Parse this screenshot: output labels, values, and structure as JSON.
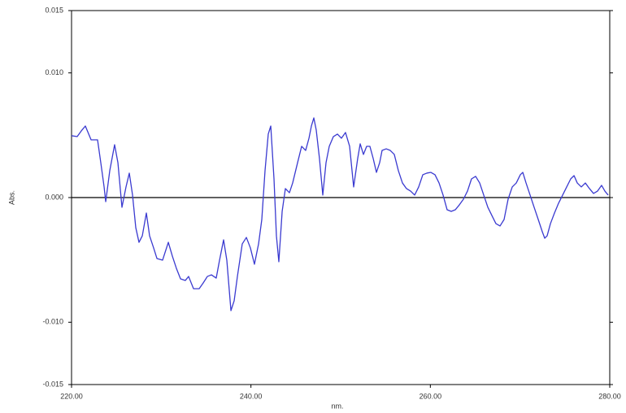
{
  "chart_data": {
    "type": "line",
    "x_label": "nm.",
    "y_label": "Abs.",
    "x": [
      220.0,
      220.63,
      221.09,
      221.54,
      222.18,
      222.9,
      223.26,
      223.63,
      223.81,
      224.26,
      224.8,
      225.17,
      225.62,
      226.07,
      226.44,
      226.8,
      227.16,
      227.52,
      227.89,
      228.34,
      228.7,
      229.15,
      229.52,
      230.15,
      230.79,
      231.24,
      231.69,
      232.15,
      232.69,
      233.05,
      233.6,
      234.23,
      234.68,
      235.14,
      235.59,
      236.13,
      236.5,
      236.95,
      237.31,
      237.77,
      238.13,
      238.49,
      239.03,
      239.49,
      239.94,
      240.39,
      240.85,
      241.21,
      241.57,
      241.93,
      242.21,
      242.57,
      242.84,
      243.11,
      243.48,
      243.84,
      244.29,
      244.65,
      245.2,
      245.65,
      246.1,
      246.47,
      246.74,
      247.01,
      247.28,
      247.64,
      248.01,
      248.37,
      248.73,
      249.19,
      249.64,
      250.09,
      250.54,
      251.0,
      251.45,
      251.9,
      252.18,
      252.54,
      252.9,
      253.26,
      253.63,
      253.99,
      254.35,
      254.62,
      255.08,
      255.53,
      255.98,
      256.44,
      256.89,
      257.34,
      257.8,
      258.25,
      258.7,
      259.16,
      259.61,
      260.06,
      260.52,
      260.97,
      261.42,
      261.87,
      262.33,
      262.78,
      263.23,
      263.69,
      264.14,
      264.59,
      265.05,
      265.5,
      265.95,
      266.41,
      266.86,
      267.31,
      267.77,
      268.22,
      268.67,
      269.13,
      269.58,
      270.03,
      270.31,
      270.67,
      271.12,
      271.57,
      272.03,
      272.48,
      272.75,
      273.02,
      273.39,
      273.84,
      274.29,
      274.75,
      275.2,
      275.65,
      276.02,
      276.38,
      276.83,
      277.28,
      277.74,
      278.19,
      278.64,
      279.09,
      279.46,
      279.82
    ],
    "series": [
      {
        "color": "#3a3ad0",
        "values": [
          0.00496,
          0.00489,
          0.00535,
          0.00574,
          0.00463,
          0.00463,
          0.0028,
          0.00085,
          -0.00033,
          0.00215,
          0.00424,
          0.0028,
          -0.00078,
          0.00085,
          0.00196,
          0.0002,
          -0.00241,
          -0.00359,
          -0.00307,
          -0.00124,
          -0.00307,
          -0.00404,
          -0.00489,
          -0.00502,
          -0.00359,
          -0.0047,
          -0.00568,
          -0.00652,
          -0.00665,
          -0.00633,
          -0.00731,
          -0.00731,
          -0.00685,
          -0.00633,
          -0.0062,
          -0.00646,
          -0.00502,
          -0.00339,
          -0.00502,
          -0.00907,
          -0.00828,
          -0.00633,
          -0.00372,
          -0.0032,
          -0.00404,
          -0.00535,
          -0.00372,
          -0.00176,
          0.00215,
          0.00509,
          0.00574,
          0.0015,
          -0.00307,
          -0.00515,
          -0.00111,
          0.00072,
          0.00039,
          0.00117,
          0.0028,
          0.00411,
          0.00378,
          0.00476,
          0.00574,
          0.00639,
          0.00541,
          0.00313,
          0.0002,
          0.0028,
          0.00411,
          0.00489,
          0.00509,
          0.00476,
          0.00522,
          0.00411,
          0.00085,
          0.00313,
          0.00431,
          0.00346,
          0.00411,
          0.00411,
          0.00313,
          0.00202,
          0.0028,
          0.00378,
          0.00391,
          0.00378,
          0.00346,
          0.00215,
          0.00117,
          0.00072,
          0.00052,
          0.0002,
          0.00085,
          0.00183,
          0.00196,
          0.00202,
          0.00183,
          0.00117,
          0.0002,
          -0.00098,
          -0.00111,
          -0.00098,
          -0.00059,
          -0.00013,
          0.00052,
          0.0015,
          0.0017,
          0.00117,
          0.0002,
          -0.00078,
          -0.00144,
          -0.00209,
          -0.00228,
          -0.00176,
          -0.00013,
          0.00085,
          0.00117,
          0.00183,
          0.00202,
          0.00117,
          0.0002,
          -0.00078,
          -0.00176,
          -0.00274,
          -0.00326,
          -0.00307,
          -0.00209,
          -0.00124,
          -0.00046,
          0.0002,
          0.00085,
          0.0015,
          0.00176,
          0.00117,
          0.00085,
          0.00117,
          0.00072,
          0.00033,
          0.00052,
          0.00098,
          0.00052,
          0.0002
        ]
      }
    ],
    "xlim": [
      220,
      280
    ],
    "xticks": [
      {
        "value": 220,
        "label": "220.00"
      },
      {
        "value": 240,
        "label": "240.00"
      },
      {
        "value": 260,
        "label": "260.00"
      },
      {
        "value": 280,
        "label": "280.00"
      }
    ],
    "ylim": [
      -0.015,
      0.015
    ],
    "yticks": [
      {
        "value": -0.015,
        "label": "-0.015"
      },
      {
        "value": -0.01,
        "label": "-0.010"
      },
      {
        "value": 0,
        "label": "0.000"
      },
      {
        "value": 0.01,
        "label": "0.010"
      },
      {
        "value": 0.015,
        "label": "0.015"
      }
    ],
    "zero_line": true
  }
}
